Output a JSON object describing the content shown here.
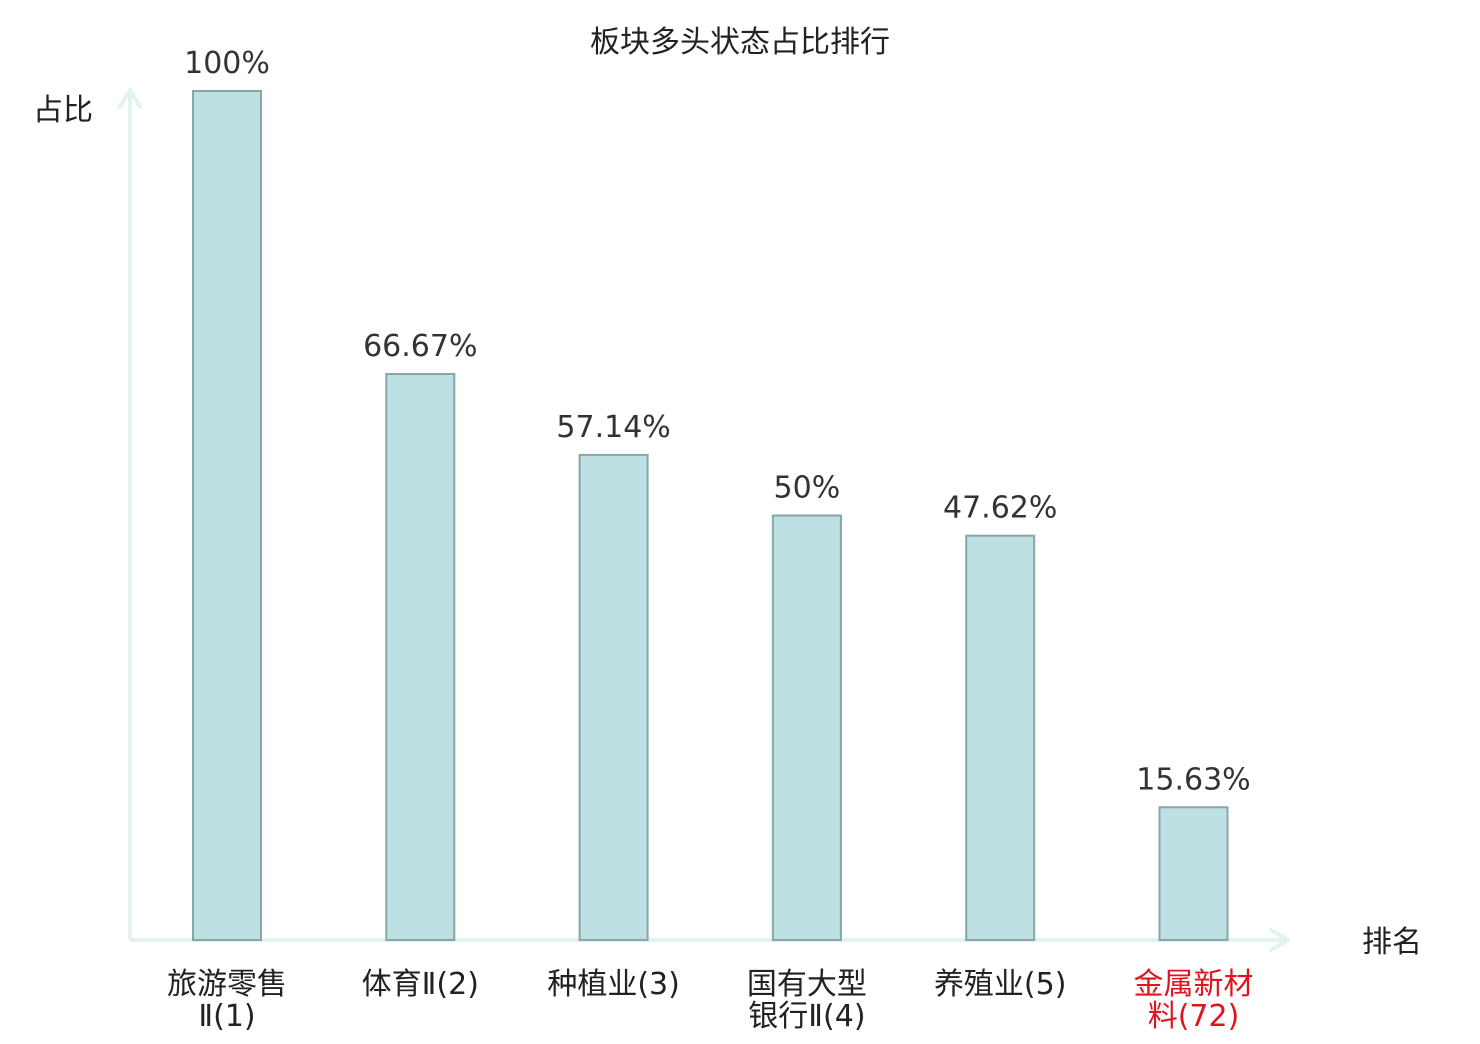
{
  "chart_data": {
    "type": "bar",
    "title": "板块多头状态占比排行",
    "ylabel": "占比",
    "xlabel": "排名",
    "ylim": [
      0,
      100
    ],
    "grid": false,
    "categories": [
      {
        "lines": [
          "旅游零售",
          "Ⅱ(1)"
        ],
        "highlight": false
      },
      {
        "lines": [
          "体育Ⅱ(2)"
        ],
        "highlight": false
      },
      {
        "lines": [
          "种植业(3)"
        ],
        "highlight": false
      },
      {
        "lines": [
          "国有大型",
          "银行Ⅱ(4)"
        ],
        "highlight": false
      },
      {
        "lines": [
          "养殖业(5)"
        ],
        "highlight": false
      },
      {
        "lines": [
          "金属新材",
          "料(72)"
        ],
        "highlight": true
      }
    ],
    "values": [
      100,
      66.67,
      57.14,
      50,
      47.62,
      15.63
    ],
    "data_labels": [
      "100%",
      "66.67%",
      "57.14%",
      "50%",
      "47.62%",
      "15.63%"
    ]
  },
  "colors": {
    "bar_fill": "#bde0e2",
    "bar_stroke": "#86a6a8",
    "axis": "#e2f3f0",
    "text": "#222222",
    "value_text": "#333333",
    "highlight": "#e0141e"
  }
}
